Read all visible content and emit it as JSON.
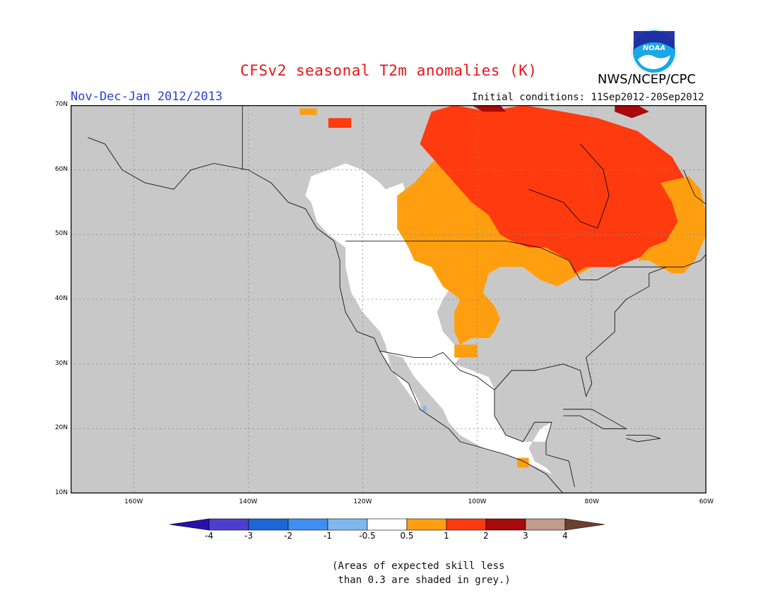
{
  "title": "CFSv2 seasonal T2m anomalies (K)",
  "period": "Nov-Dec-Jan 2012/2013",
  "initial_conditions": "Initial conditions: 11Sep2012-20Sep2012",
  "agency": "NWS/NCEP/CPC",
  "logo_text": "NOAA",
  "map": {
    "lat_labels": [
      "70N",
      "60N",
      "50N",
      "40N",
      "30N",
      "20N",
      "10N"
    ],
    "lon_labels": [
      "160W",
      "140W",
      "120W",
      "100W",
      "80W",
      "60W"
    ],
    "lon_range": [
      -171,
      -60
    ],
    "lat_range": [
      10,
      70
    ],
    "no_skill_color": "#c8c8c8",
    "regions": [
      {
        "name": "canada-warm-core",
        "category": "1 to 2",
        "color": "#ff3a0e"
      },
      {
        "name": "canada-plains-moderate",
        "category": "0.5 to 1",
        "color": "#ff9f10"
      },
      {
        "name": "arctic-strong",
        "category": "2 to 3",
        "color": "#a80a0a"
      },
      {
        "name": "western-us-near-normal",
        "category": "-0.5 to 0.5",
        "color": "#ffffff"
      },
      {
        "name": "mexico-near-normal",
        "category": "-0.5 to 0.5",
        "color": "#ffffff"
      },
      {
        "name": "mexico-cool-spot",
        "category": "-1 to -0.5",
        "color": "#7fb8f0"
      }
    ]
  },
  "colorbar": {
    "ticks": [
      "-4",
      "-3",
      "-2",
      "-1",
      "-0.5",
      "0.5",
      "1",
      "2",
      "3",
      "4"
    ],
    "colors": [
      "#2b0fa8",
      "#4c3fcf",
      "#1c66d6",
      "#3f8ff0",
      "#7fb8f0",
      "#ffffff",
      "#ff9f10",
      "#ff3a0e",
      "#a80a0a",
      "#c39a8e",
      "#6b4030"
    ]
  },
  "note": "(Areas of expected skill less\n than 0.3 are shaded in grey.)"
}
